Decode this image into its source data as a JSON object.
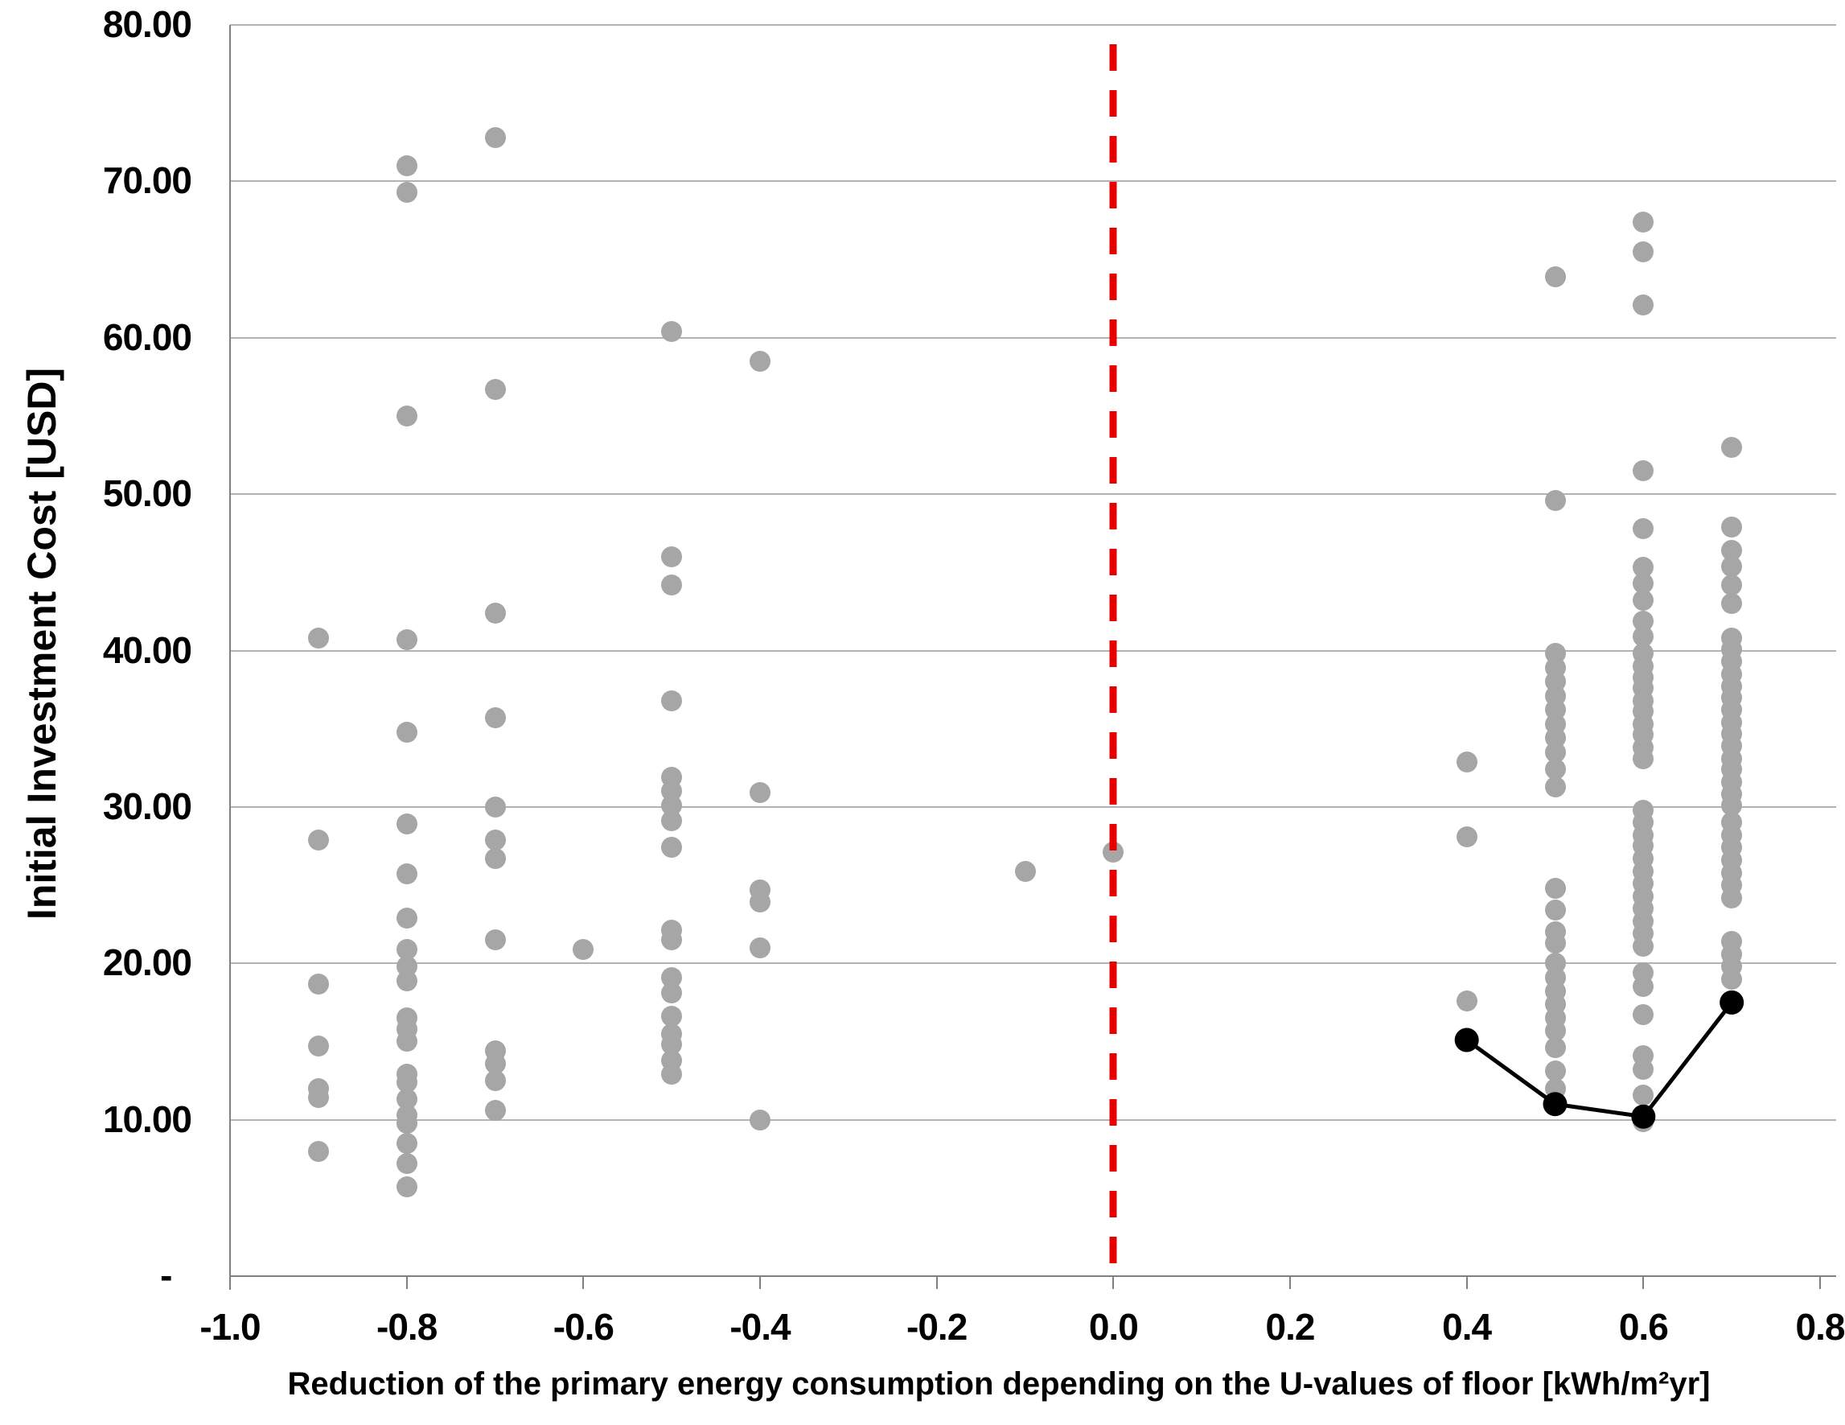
{
  "chart_data": {
    "type": "scatter",
    "title": "",
    "xlabel": "Reduction of the primary energy consumption depending on the U-values of floor [kWh/m²yr]",
    "ylabel": "Initial Investment Cost [USD]",
    "xlim": [
      -1.0,
      0.82
    ],
    "ylim": [
      0,
      80
    ],
    "grid": "horizontal",
    "legend_position": "none",
    "x_ticks": [
      {
        "label": "-1.0",
        "value": -1.0
      },
      {
        "label": "-0.8",
        "value": -0.8
      },
      {
        "label": "-0.6",
        "value": -0.6
      },
      {
        "label": "-0.4",
        "value": -0.4
      },
      {
        "label": "-0.2",
        "value": -0.2
      },
      {
        "label": "0.0",
        "value": 0.0
      },
      {
        "label": "0.2",
        "value": 0.2
      },
      {
        "label": "0.4",
        "value": 0.4
      },
      {
        "label": "0.6",
        "value": 0.6
      },
      {
        "label": "0.8",
        "value": 0.8
      }
    ],
    "y_ticks": [
      {
        "label": "80.00",
        "value": 80
      },
      {
        "label": "70.00",
        "value": 70
      },
      {
        "label": "60.00",
        "value": 60
      },
      {
        "label": "50.00",
        "value": 50
      },
      {
        "label": "40.00",
        "value": 40
      },
      {
        "label": "30.00",
        "value": 30
      },
      {
        "label": "20.00",
        "value": 20
      },
      {
        "label": "10.00",
        "value": 10
      },
      {
        "label": "- ",
        "value": 0
      }
    ],
    "reference_line": {
      "axis": "x",
      "value": 0.0,
      "style": "dashed",
      "color": "#e60000"
    },
    "colors": {
      "scatter": "#a6a6a6",
      "optimal": "#000000",
      "gridline": "#b3b3b3",
      "axis": "#808080"
    },
    "series": [
      {
        "name": "design-alternatives",
        "type": "scatter",
        "color": "#a6a6a6",
        "columns": [
          {
            "x": -0.9,
            "values": [
              40.8,
              27.9,
              18.7,
              14.7,
              12.0,
              11.4,
              8.0
            ]
          },
          {
            "x": -0.8,
            "values": [
              71.0,
              69.3,
              55.0,
              40.7,
              34.8,
              28.9,
              25.7,
              22.9,
              20.9,
              19.8,
              18.9,
              16.5,
              15.8,
              15.0,
              12.9,
              12.4,
              11.3,
              10.3,
              9.8,
              8.5,
              7.2,
              5.7
            ]
          },
          {
            "x": -0.7,
            "values": [
              72.8,
              56.7,
              42.4,
              35.7,
              30.0,
              27.9,
              26.7,
              21.5,
              14.4,
              13.6,
              12.5,
              10.6
            ]
          },
          {
            "x": -0.6,
            "values": [
              20.9
            ]
          },
          {
            "x": -0.5,
            "values": [
              60.4,
              46.0,
              44.2,
              36.8,
              31.9,
              31.0,
              30.1,
              29.1,
              27.4,
              22.1,
              21.5,
              19.1,
              18.1,
              16.6,
              15.5,
              14.8,
              13.8,
              12.9
            ]
          },
          {
            "x": -0.4,
            "values": [
              58.5,
              30.9,
              24.7,
              23.9,
              21.0,
              10.0
            ]
          },
          {
            "x": -0.1,
            "values": [
              25.9
            ]
          },
          {
            "x": 0.0,
            "values": [
              27.1
            ]
          },
          {
            "x": 0.4,
            "values": [
              32.9,
              28.1,
              17.6,
              15.2
            ]
          },
          {
            "x": 0.5,
            "values": [
              63.9,
              49.6,
              39.8,
              38.9,
              38.0,
              37.1,
              36.2,
              35.3,
              34.4,
              33.5,
              32.4,
              31.3,
              24.8,
              23.4,
              22.0,
              21.3,
              20.0,
              19.1,
              18.2,
              17.4,
              16.5,
              15.7,
              14.6,
              13.1,
              12.0
            ]
          },
          {
            "x": 0.6,
            "values": [
              67.4,
              65.5,
              62.1,
              51.5,
              47.8,
              45.3,
              44.3,
              43.2,
              41.9,
              40.9,
              39.8,
              39.0,
              38.3,
              37.6,
              36.8,
              36.1,
              35.3,
              34.6,
              33.8,
              33.1,
              29.8,
              29.0,
              28.2,
              27.5,
              26.7,
              25.9,
              25.1,
              24.3,
              23.5,
              22.7,
              21.9,
              21.1,
              19.4,
              18.5,
              16.7,
              14.1,
              13.2,
              11.6,
              9.9
            ]
          },
          {
            "x": 0.7,
            "values": [
              53.0,
              47.9,
              46.4,
              45.4,
              44.2,
              43.0,
              40.8,
              40.1,
              39.3,
              38.5,
              37.7,
              37.0,
              36.2,
              35.4,
              34.7,
              33.9,
              33.1,
              32.4,
              31.6,
              30.8,
              30.1,
              29.0,
              28.2,
              27.4,
              26.6,
              25.8,
              25.0,
              24.2,
              21.4,
              20.6,
              19.8,
              19.0,
              17.4
            ]
          }
        ]
      },
      {
        "name": "optimal-path",
        "type": "line-with-markers",
        "color": "#000000",
        "points": [
          [
            0.4,
            15.1
          ],
          [
            0.5,
            11.0
          ],
          [
            0.6,
            10.2
          ],
          [
            0.7,
            17.5
          ]
        ]
      }
    ]
  }
}
